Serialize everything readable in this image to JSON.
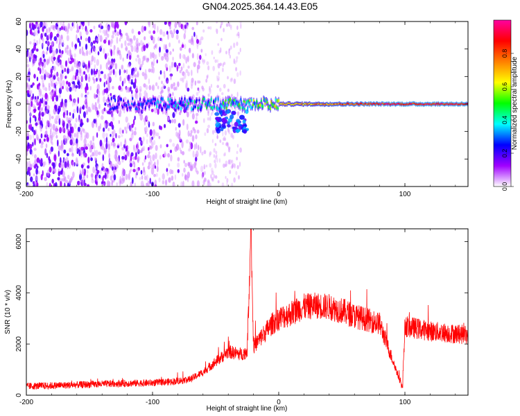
{
  "figure_title": "GN04.2025.364.14.43.E05",
  "chart_data": [
    {
      "type": "heatmap",
      "title": "GN04.2025.364.14.43.E05",
      "xlabel": "Height of straight line (km)",
      "ylabel": "Frequency (Hz)",
      "xlim": [
        -200,
        150
      ],
      "ylim": [
        -60,
        60
      ],
      "xticks": [
        -200,
        -100,
        0,
        100
      ],
      "xtick_labels": [
        "-200",
        "-100",
        "0",
        "100"
      ],
      "yticks": [
        -60,
        -40,
        -20,
        0,
        20,
        40,
        60
      ],
      "ytick_labels": [
        "-60",
        "-40",
        "-20",
        "0",
        "20",
        "40",
        "60"
      ],
      "colorbar": {
        "label": "Normalized spectral amplitude",
        "range": [
          0,
          1
        ],
        "ticks": [
          0,
          0.2,
          0.4,
          0.6,
          0.8
        ],
        "tick_labels": [
          "0.0",
          "0.2",
          "0.4",
          "0.6",
          "0.8"
        ],
        "colormap_stops": [
          "#ffffff",
          "#a000ff",
          "#0000ff",
          "#00ffff",
          "#00ff00",
          "#ffff00",
          "#ff8000",
          "#ff0000",
          "#ff00a0"
        ]
      },
      "features": [
        {
          "name": "broadband noise",
          "x_range": [
            -200,
            -60
          ],
          "y_range": [
            -60,
            60
          ],
          "amplitude": 0.1
        },
        {
          "name": "sparse noise",
          "x_range": [
            -60,
            -30
          ],
          "y_range": [
            -60,
            60
          ],
          "amplitude": 0.05
        },
        {
          "name": "meteor head echo band",
          "x_range": [
            -135,
            150
          ],
          "center_frequency_hz": 0,
          "amplitude_start": 0.25,
          "amplitude_end": 0.9
        },
        {
          "name": "lower offset blobs",
          "x_range": [
            -50,
            -25
          ],
          "y_range": [
            -20,
            -5
          ],
          "amplitude": 0.3
        }
      ]
    },
    {
      "type": "line",
      "xlabel": "Height of straight line (km)",
      "ylabel": "SNR (10 * v/v)",
      "xlim": [
        -200,
        150
      ],
      "ylim": [
        0,
        6500
      ],
      "xticks": [
        -200,
        -100,
        0,
        100
      ],
      "xtick_labels": [
        "-200",
        "-100",
        "0",
        "100"
      ],
      "yticks": [
        0,
        2000,
        4000,
        6000
      ],
      "ytick_labels": [
        "0",
        "2000",
        "4000",
        "6000"
      ],
      "color": "#ff0000",
      "x": [
        -200,
        -175,
        -150,
        -125,
        -100,
        -85,
        -70,
        -60,
        -50,
        -40,
        -30,
        -25,
        -22,
        -20,
        -15,
        -10,
        -5,
        0,
        5,
        10,
        15,
        20,
        30,
        40,
        50,
        60,
        80,
        98,
        100,
        120,
        140,
        150
      ],
      "y": [
        350,
        380,
        420,
        460,
        480,
        530,
        620,
        900,
        1300,
        1700,
        1600,
        1700,
        6500,
        1900,
        2200,
        2500,
        2800,
        3000,
        3100,
        3200,
        3350,
        3450,
        3500,
        3450,
        3300,
        3100,
        2800,
        300,
        2700,
        2500,
        2400,
        2350
      ],
      "noise_amplitude": 400
    }
  ]
}
